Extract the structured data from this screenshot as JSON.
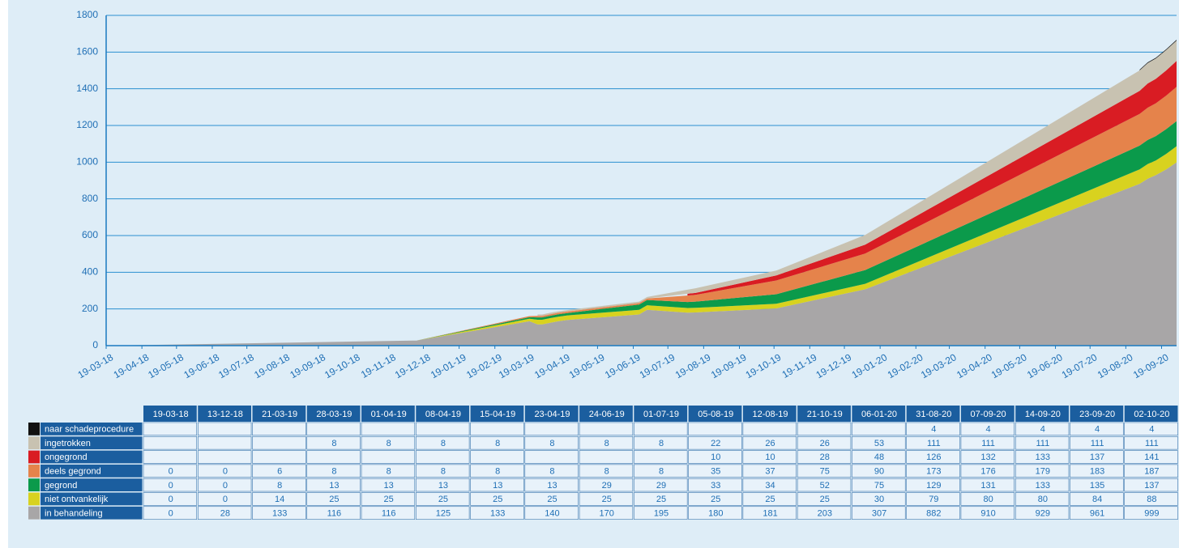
{
  "chart_data": {
    "type": "stacked-area",
    "x": [
      "19-03-18",
      "13-12-18",
      "21-03-19",
      "28-03-19",
      "01-04-19",
      "08-04-19",
      "15-04-19",
      "23-04-19",
      "24-06-19",
      "01-07-19",
      "05-08-19",
      "12-08-19",
      "21-10-19",
      "06-01-20",
      "31-08-20",
      "07-09-20",
      "14-09-20",
      "23-09-20",
      "02-10-20"
    ],
    "xlim": [
      "19-03-18",
      "02-10-20"
    ],
    "xticks": [
      "19-03-18",
      "19-04-18",
      "19-05-18",
      "19-06-18",
      "19-07-18",
      "19-08-18",
      "19-09-18",
      "19-10-18",
      "19-11-18",
      "19-12-18",
      "19-01-19",
      "19-02-19",
      "19-03-19",
      "19-04-19",
      "19-05-19",
      "19-06-19",
      "19-07-19",
      "19-08-19",
      "19-09-19",
      "19-10-19",
      "19-11-19",
      "19-12-19",
      "19-01-20",
      "19-02-20",
      "19-03-20",
      "19-04-20",
      "19-05-20",
      "19-06-20",
      "19-07-20",
      "19-08-20",
      "19-09-20"
    ],
    "ylim": [
      0,
      1800
    ],
    "yticks": [
      0,
      200,
      400,
      600,
      800,
      1000,
      1200,
      1400,
      1600,
      1800
    ],
    "grid": true,
    "series": [
      {
        "name": "in behandeling",
        "color": "#a8a6a7",
        "values": [
          0,
          28,
          133,
          116,
          116,
          125,
          133,
          140,
          170,
          195,
          180,
          181,
          203,
          307,
          882,
          910,
          929,
          961,
          999
        ]
      },
      {
        "name": "niet ontvankelijk",
        "color": "#d8d21f",
        "values": [
          0,
          0,
          14,
          25,
          25,
          25,
          25,
          25,
          25,
          25,
          25,
          25,
          25,
          30,
          79,
          80,
          80,
          84,
          88
        ]
      },
      {
        "name": "gegrond",
        "color": "#0b9a4b",
        "values": [
          0,
          0,
          8,
          13,
          13,
          13,
          13,
          13,
          29,
          29,
          33,
          34,
          52,
          75,
          129,
          131,
          133,
          135,
          137
        ]
      },
      {
        "name": "deels gegrond",
        "color": "#e5834b",
        "values": [
          0,
          0,
          6,
          8,
          8,
          8,
          8,
          8,
          8,
          8,
          35,
          37,
          75,
          90,
          173,
          176,
          179,
          183,
          187
        ]
      },
      {
        "name": "ongegrond",
        "color": "#d91c23",
        "values": [
          null,
          null,
          null,
          null,
          null,
          null,
          null,
          null,
          null,
          null,
          10,
          10,
          28,
          48,
          126,
          132,
          133,
          137,
          141
        ]
      },
      {
        "name": "ingetrokken",
        "color": "#c8c2b1",
        "values": [
          null,
          null,
          null,
          8,
          8,
          8,
          8,
          8,
          8,
          8,
          22,
          26,
          26,
          53,
          111,
          111,
          111,
          111,
          111
        ]
      },
      {
        "name": "naar schadeprocedure",
        "color": "#111111",
        "values": [
          null,
          null,
          null,
          null,
          null,
          null,
          null,
          null,
          null,
          null,
          null,
          null,
          null,
          null,
          4,
          4,
          4,
          4,
          4
        ]
      }
    ]
  }
}
